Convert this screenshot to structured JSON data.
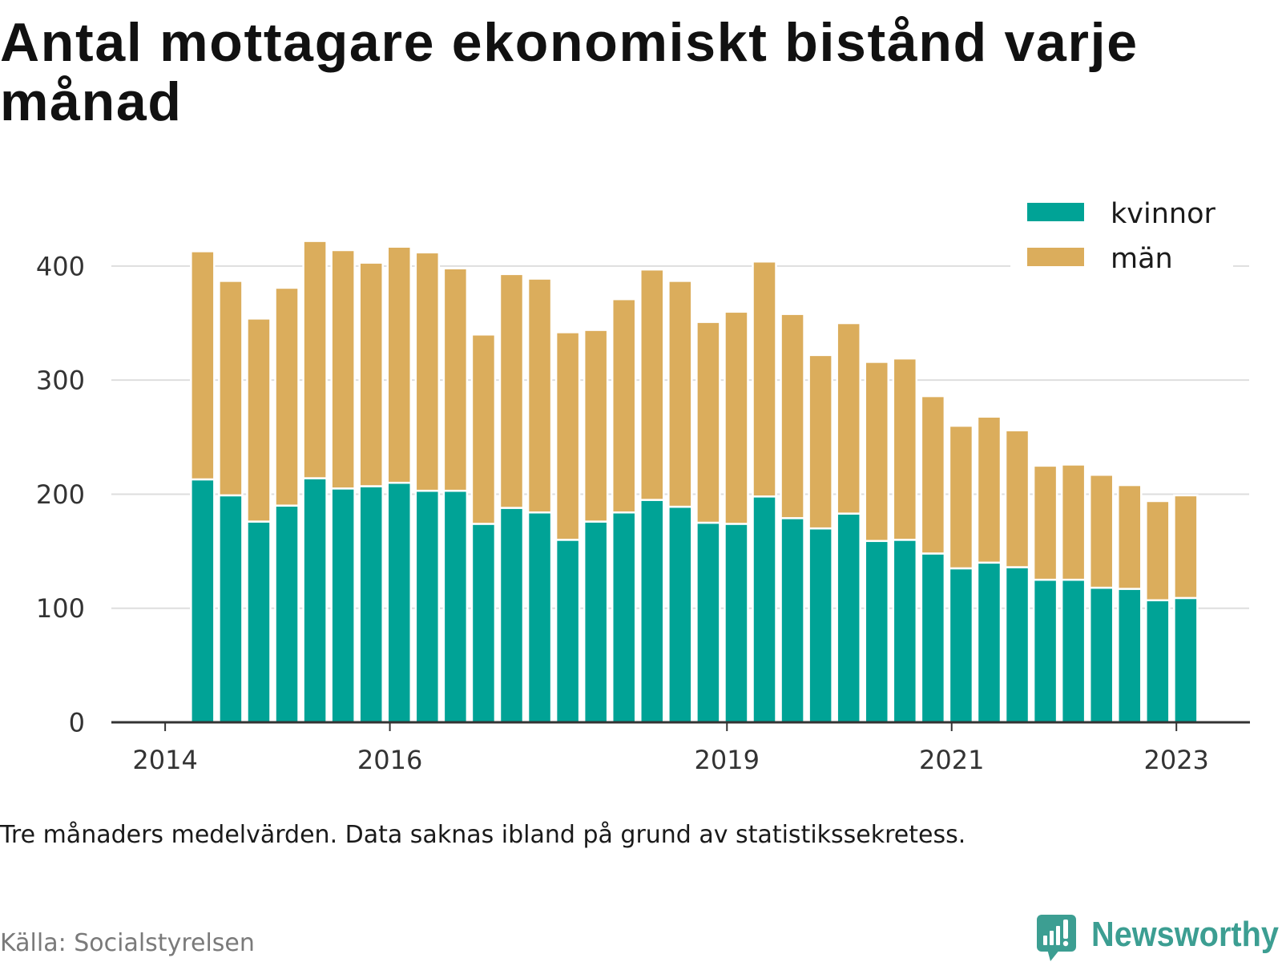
{
  "title": "Antal mottagare ekonomiskt bistånd varje månad",
  "note": "Tre månaders medelvärden. Data saknas ibland på grund av statistikssekretess.",
  "source": "Källa: Socialstyrelsen",
  "brand": {
    "name": "Newsworthy",
    "icon": "newsworthy-chart-bubble-icon",
    "color": "#3c9e92"
  },
  "colors": {
    "grid": "#dedede",
    "axis": "#333333",
    "background": "#ffffff"
  },
  "chart_data": {
    "type": "bar",
    "stacked": true,
    "x": [
      "2014-05",
      "2014-08",
      "2014-11",
      "2015-02",
      "2015-05",
      "2015-08",
      "2015-11",
      "2016-02",
      "2016-05",
      "2016-08",
      "2016-11",
      "2017-02",
      "2017-05",
      "2017-08",
      "2017-11",
      "2018-02",
      "2018-05",
      "2018-08",
      "2018-11",
      "2019-02",
      "2019-05",
      "2019-08",
      "2019-11",
      "2020-02",
      "2020-05",
      "2020-08",
      "2020-11",
      "2021-02",
      "2021-05",
      "2021-08",
      "2021-11",
      "2022-02",
      "2022-05",
      "2022-08",
      "2022-11",
      "2023-02"
    ],
    "series": [
      {
        "name": "kvinnor",
        "color": "#00a396",
        "values": [
          213,
          199,
          176,
          190,
          214,
          205,
          207,
          210,
          203,
          203,
          174,
          188,
          184,
          160,
          176,
          184,
          195,
          189,
          175,
          174,
          198,
          179,
          170,
          183,
          159,
          160,
          148,
          135,
          140,
          136,
          125,
          125,
          118,
          117,
          107,
          109
        ]
      },
      {
        "name": "män",
        "color": "#dbad5c",
        "values": [
          200,
          188,
          178,
          191,
          208,
          209,
          196,
          207,
          209,
          195,
          166,
          205,
          205,
          182,
          168,
          187,
          202,
          198,
          176,
          186,
          206,
          179,
          152,
          167,
          157,
          159,
          138,
          125,
          128,
          120,
          100,
          101,
          99,
          91,
          87,
          90
        ]
      }
    ],
    "x_ticks": [
      "2014",
      "2016",
      "2019",
      "2021",
      "2023"
    ],
    "y_ticks": [
      0,
      100,
      200,
      300,
      400
    ],
    "xlim": [
      "2013-07",
      "2023-08"
    ],
    "ylim": [
      0,
      440
    ],
    "grid": true,
    "legend": "top-right"
  }
}
